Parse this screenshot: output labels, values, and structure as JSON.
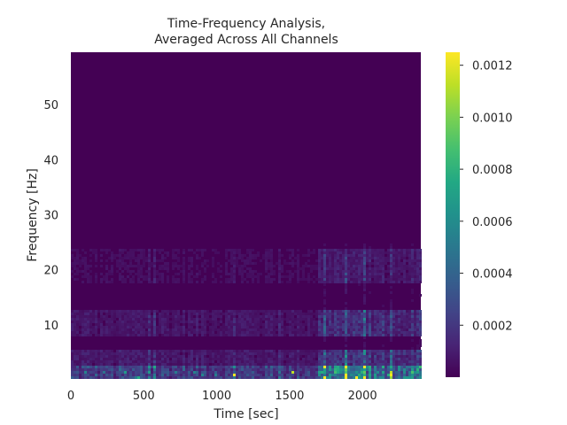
{
  "chart_data": {
    "type": "heatmap",
    "title_lines": [
      "Time-Frequency Analysis,",
      "Averaged Across All Channels"
    ],
    "xlabel": "Time [sec]",
    "ylabel": "Frequency [Hz]",
    "xlim": [
      0,
      2400
    ],
    "ylim": [
      0.5,
      59.5
    ],
    "x_ticks": [
      0,
      500,
      1000,
      1500,
      2000
    ],
    "x_tick_labels": [
      "0",
      "500",
      "1000",
      "1500",
      "2000"
    ],
    "y_ticks": [
      10,
      20,
      30,
      40,
      50
    ],
    "y_tick_labels": [
      "10",
      "20",
      "30",
      "40",
      "50"
    ],
    "colormap": "viridis",
    "colorbar": {
      "range": [
        0.0,
        0.00125
      ],
      "ticks": [
        0.0002,
        0.0004,
        0.0006,
        0.0008,
        0.001,
        0.0012
      ],
      "tick_labels": [
        "0.0002",
        "0.0004",
        "0.0006",
        "0.0008",
        "0.0010",
        "0.0012"
      ]
    },
    "grid": false,
    "power_profile": {
      "description_note": "",
      "dominant_low_frequency_band_hz": [
        0.5,
        3
      ],
      "alpha_band_hz": [
        8,
        13
      ],
      "beta_band_hz": [
        18,
        24
      ],
      "late_time_broadband_increase_sec": [
        1700,
        2400
      ],
      "max_power": 0.00125,
      "background_power": 1e-05
    }
  }
}
